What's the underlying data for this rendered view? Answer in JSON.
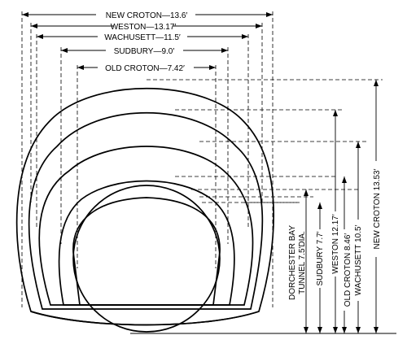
{
  "widths": {
    "new_croton": "NEW CROTON—13.6′",
    "weston": "WESTON—13.17′",
    "wachusett": "WACHUSETT—11.5′",
    "sudbury": "SUDBURY—9.0′",
    "old_croton": "OLD CROTON—7.42′"
  },
  "heights": {
    "dorchester_line1": "DORCHESTER BAY",
    "dorchester_line2": "TUNNEL 7.5′DIA.",
    "sudbury": "SUDBURY 7.7′",
    "weston": "WESTON 12.17′",
    "old_croton": "OLD CROTON 8.46′",
    "wachusett": "WACHUSETT 10.5′",
    "new_croton": "NEW CROTON 13.53′"
  }
}
